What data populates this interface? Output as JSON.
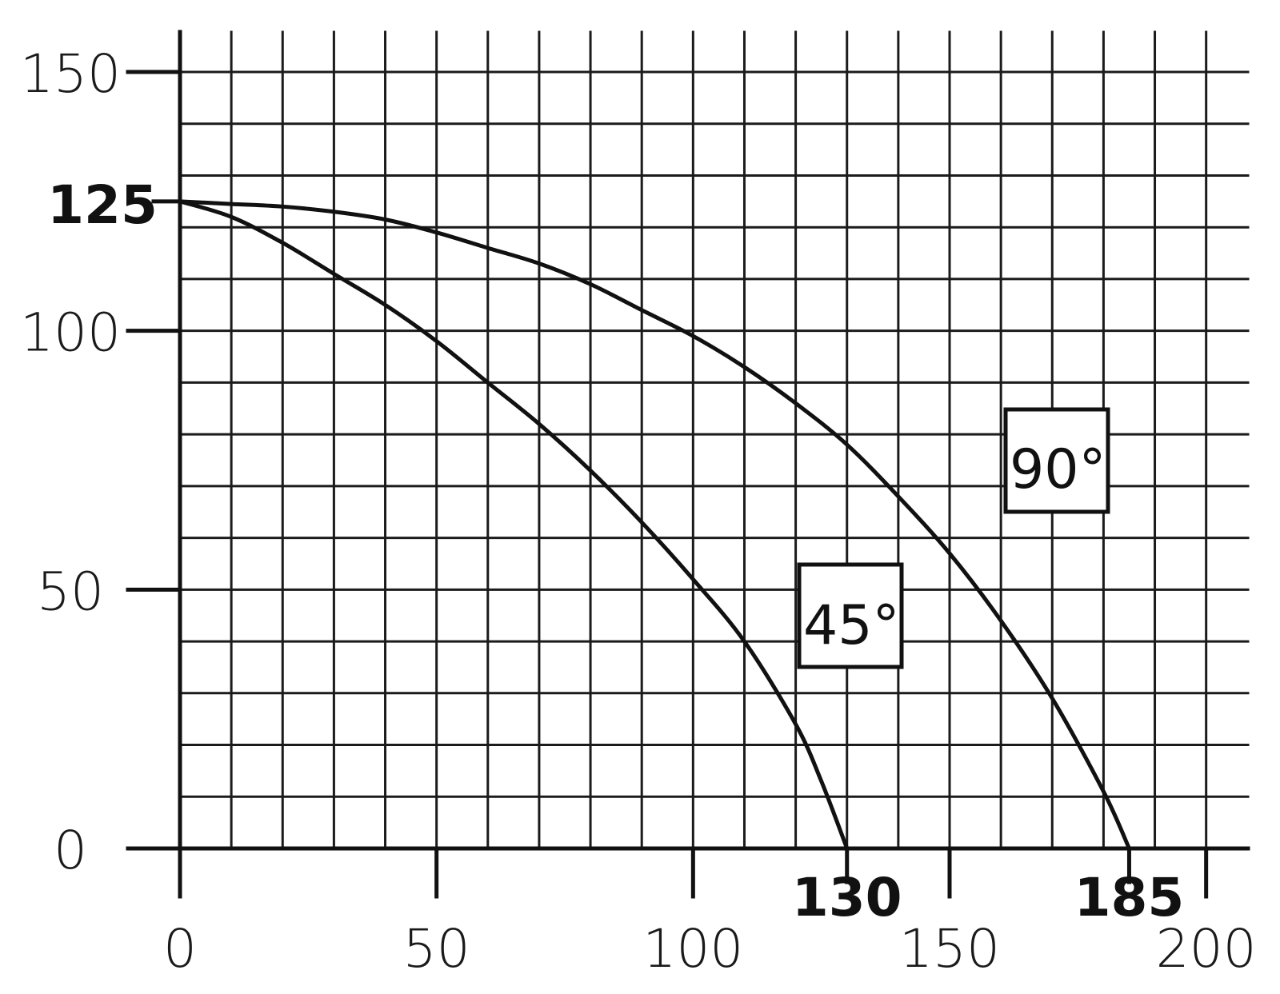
{
  "chart_data": {
    "type": "line",
    "title": "",
    "xlabel": "",
    "ylabel": "",
    "xlim": [
      0,
      200
    ],
    "ylim": [
      0,
      150
    ],
    "grid": true,
    "x_ticks": [
      0,
      50,
      100,
      150,
      200
    ],
    "y_ticks": [
      0,
      50,
      100,
      150
    ],
    "y_tick_labels": [
      "0",
      "50",
      "100",
      "150"
    ],
    "x_tick_labels": [
      "0",
      "50",
      "100",
      "150",
      "200"
    ],
    "highlight_y": [
      {
        "value": 125,
        "label": "125"
      }
    ],
    "highlight_x": [
      {
        "value": 130,
        "label": "130"
      },
      {
        "value": 185,
        "label": "185"
      }
    ],
    "series": [
      {
        "name": "45°",
        "x": [
          0,
          10,
          20,
          30,
          40,
          50,
          60,
          70,
          80,
          90,
          100,
          110,
          120,
          125,
          130
        ],
        "y": [
          125,
          122,
          117,
          111,
          105,
          98,
          90,
          82,
          73,
          63,
          52,
          40,
          24,
          13,
          0
        ]
      },
      {
        "name": "90°",
        "x": [
          0,
          10,
          20,
          30,
          40,
          50,
          60,
          70,
          80,
          90,
          100,
          110,
          120,
          130,
          140,
          150,
          160,
          170,
          180,
          185
        ],
        "y": [
          125,
          124.5,
          124,
          123,
          121.5,
          119,
          116,
          113,
          109,
          104,
          99,
          93,
          86,
          78,
          68,
          57,
          44,
          29,
          11,
          0
        ]
      }
    ]
  }
}
